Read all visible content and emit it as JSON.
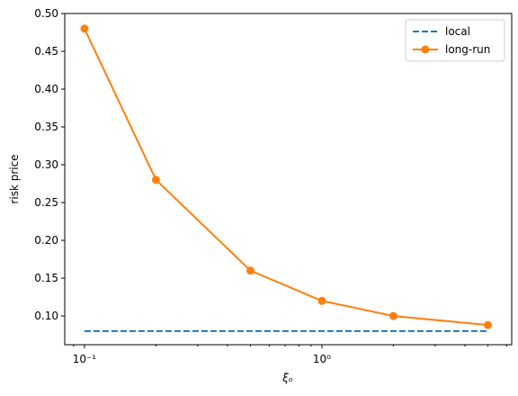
{
  "chart_data": {
    "type": "line",
    "x_label": "ξₒ",
    "y_label": "risk price",
    "x_scale": "log",
    "x": [
      0.1,
      0.2,
      0.5,
      1,
      2,
      5
    ],
    "series": [
      {
        "name": "local",
        "color": "#1f77b4",
        "style": "dashed",
        "markers": false,
        "values": [
          0.08,
          0.08,
          0.08,
          0.08,
          0.08,
          0.08
        ]
      },
      {
        "name": "long-run",
        "color": "#ff7f0e",
        "style": "solid",
        "markers": true,
        "values": [
          0.48,
          0.28,
          0.16,
          0.12,
          0.1,
          0.088
        ]
      }
    ],
    "xlim": [
      0.0826,
      6.3
    ],
    "xticks": [
      {
        "value": 0.1,
        "label": "10⁻¹"
      },
      {
        "value": 1,
        "label": "10⁰"
      }
    ],
    "xminorticks": [
      0.09,
      0.2,
      0.3,
      0.4,
      0.5,
      0.6,
      0.7,
      0.8,
      0.9,
      2,
      3,
      4,
      5,
      6
    ],
    "ylim": [
      0.062,
      0.5
    ],
    "yticks": [
      {
        "value": 0.1,
        "label": "0.10"
      },
      {
        "value": 0.15,
        "label": "0.15"
      },
      {
        "value": 0.2,
        "label": "0.20"
      },
      {
        "value": 0.25,
        "label": "0.25"
      },
      {
        "value": 0.3,
        "label": "0.30"
      },
      {
        "value": 0.35,
        "label": "0.35"
      },
      {
        "value": 0.4,
        "label": "0.40"
      },
      {
        "value": 0.45,
        "label": "0.45"
      },
      {
        "value": 0.5,
        "label": "0.50"
      }
    ],
    "legend": "upper right"
  }
}
